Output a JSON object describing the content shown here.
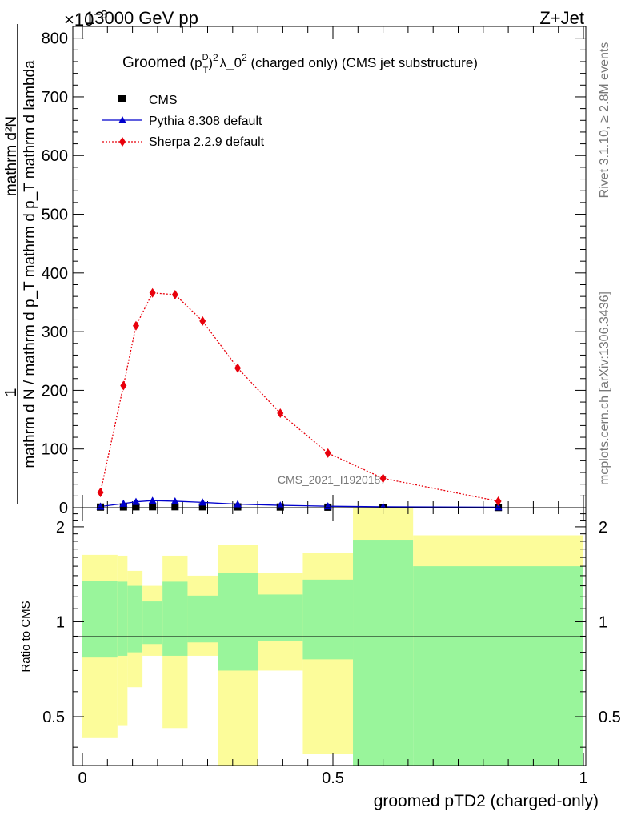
{
  "header": {
    "energy_label": "13000 GeV pp",
    "process_label": "Z+Jet",
    "exponent_label": "×10",
    "exponent_power": "−3"
  },
  "side_labels": {
    "rivet": "Rivet 3.1.10, ≥ 2.8M events",
    "mcplots": "mcplots.cern.ch [arXiv:1306.3436]"
  },
  "watermark": "CMS_2021_I1920187",
  "chart_data": [
    {
      "type": "scatter",
      "title": "Groomed (p_T^D)^2 λ_0^2  (charged only) (CMS jet substructure)",
      "title_parts": {
        "prefix": "Groomed",
        "pt": "p",
        "sup_D": "D",
        "sub_T": "T",
        "sup2": "2",
        "lambda": "λ_0",
        "sup2b": "2",
        "suffix": " (charged only) (CMS jet substructure)"
      },
      "ylabel_parts": {
        "one": "1",
        "numerator": "mathrm d²N",
        "denominator": "mathrm d N / mathrm d p_T mathrm d p_T mathrm d lambda"
      },
      "xlim": [
        0,
        1
      ],
      "ylim": [
        0,
        820
      ],
      "y_unit_scale": "×10^-3",
      "y_ticks": [
        0,
        100,
        200,
        300,
        400,
        500,
        600,
        700,
        800
      ],
      "x": [
        0.036,
        0.082,
        0.107,
        0.14,
        0.185,
        0.24,
        0.31,
        0.395,
        0.49,
        0.6,
        0.83
      ],
      "series": [
        {
          "name": "CMS",
          "color": "#000000",
          "marker": "square",
          "values": [
            1.0,
            1.3,
            1.5,
            1.6,
            1.6,
            1.5,
            1.3,
            1.1,
            0.8,
            0.5,
            0.3
          ]
        },
        {
          "name": "Pythia 8.308 default",
          "color": "#0000cc",
          "marker": "triangle",
          "values": [
            2,
            7,
            10,
            12,
            11,
            9,
            6,
            4,
            2.5,
            1.5,
            0.8
          ]
        },
        {
          "name": "Sherpa 2.2.9 default",
          "color": "#e8000b",
          "marker": "diamond",
          "values": [
            26,
            208,
            310,
            366,
            363,
            318,
            238,
            161,
            93,
            50,
            11
          ]
        }
      ]
    },
    {
      "type": "area",
      "ylabel": "Ratio to CMS",
      "xlabel": "groomed pTD2 (charged-only)",
      "xlim": [
        0,
        1
      ],
      "ylim": [
        0.35,
        2.3
      ],
      "x_ticks": [
        0,
        0.5,
        1
      ],
      "x_tick_labels": [
        "0",
        "0.5",
        "1"
      ],
      "y_ticks": [
        0.5,
        1,
        2
      ],
      "y_tick_labels": [
        "0.5",
        "1",
        "2"
      ],
      "bins": [
        {
          "lo": 0.0,
          "hi": 0.07,
          "inner": [
            0.77,
            1.35
          ],
          "outer": [
            0.43,
            1.63
          ]
        },
        {
          "lo": 0.07,
          "hi": 0.09,
          "inner": [
            0.78,
            1.34
          ],
          "outer": [
            0.47,
            1.62
          ]
        },
        {
          "lo": 0.09,
          "hi": 0.12,
          "inner": [
            0.8,
            1.3
          ],
          "outer": [
            0.62,
            1.45
          ]
        },
        {
          "lo": 0.12,
          "hi": 0.16,
          "inner": [
            0.85,
            1.16
          ],
          "outer": [
            0.78,
            1.3
          ]
        },
        {
          "lo": 0.16,
          "hi": 0.21,
          "inner": [
            0.78,
            1.34
          ],
          "outer": [
            0.46,
            1.62
          ]
        },
        {
          "lo": 0.21,
          "hi": 0.27,
          "inner": [
            0.86,
            1.21
          ],
          "outer": [
            0.78,
            1.4
          ]
        },
        {
          "lo": 0.27,
          "hi": 0.35,
          "inner": [
            0.7,
            1.43
          ],
          "outer": [
            0.35,
            1.75
          ]
        },
        {
          "lo": 0.35,
          "hi": 0.44,
          "inner": [
            0.87,
            1.22
          ],
          "outer": [
            0.7,
            1.43
          ]
        },
        {
          "lo": 0.44,
          "hi": 0.54,
          "inner": [
            0.76,
            1.36
          ],
          "outer": [
            0.38,
            1.65
          ]
        },
        {
          "lo": 0.54,
          "hi": 0.66,
          "inner": [
            0.35,
            1.82
          ],
          "outer": [
            0.35,
            2.3
          ]
        },
        {
          "lo": 0.66,
          "hi": 1.0,
          "inner": [
            0.35,
            1.5
          ],
          "outer": [
            0.62,
            1.88
          ]
        }
      ],
      "colors": {
        "inner": "#99f59b",
        "outer": "#fcfc9a"
      }
    }
  ]
}
